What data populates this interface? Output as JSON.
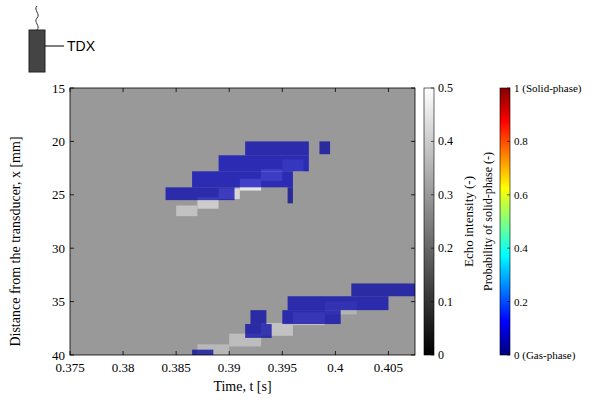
{
  "chart_data": {
    "type": "heatmap",
    "xlabel": "Time, t [s]",
    "ylabel": "Distance from the transducer, x [mm]",
    "annotations": [
      "TDX"
    ],
    "xlim": [
      0.375,
      0.4075
    ],
    "ylim": [
      15,
      40
    ],
    "xticks": [
      0.375,
      0.38,
      0.385,
      0.39,
      0.395,
      0.4,
      0.405
    ],
    "yticks": [
      15,
      20,
      25,
      30,
      35,
      40
    ],
    "echo": {
      "label": "Echo intensity (-)",
      "clim": [
        0,
        0.5
      ],
      "ticks": [
        0,
        0.1,
        0.2,
        0.3,
        0.4,
        0.5
      ],
      "cells": [
        {
          "t": [
            0.375,
            0.4075
          ],
          "x": [
            15,
            40
          ],
          "value": 0.3
        },
        {
          "t": [
            0.385,
            0.387
          ],
          "x": [
            26,
            27
          ],
          "value": 0.38
        },
        {
          "t": [
            0.387,
            0.389
          ],
          "x": [
            25.2,
            26.3
          ],
          "value": 0.4
        },
        {
          "t": [
            0.389,
            0.391
          ],
          "x": [
            24.4,
            25.4
          ],
          "value": 0.42
        },
        {
          "t": [
            0.391,
            0.393
          ],
          "x": [
            23.5,
            24.6
          ],
          "value": 0.45
        },
        {
          "t": [
            0.393,
            0.395
          ],
          "x": [
            22.6,
            23.7
          ],
          "value": 0.42
        },
        {
          "t": [
            0.395,
            0.397
          ],
          "x": [
            21.7,
            22.8
          ],
          "value": 0.38
        },
        {
          "t": [
            0.387,
            0.39
          ],
          "x": [
            39,
            40
          ],
          "value": 0.36
        },
        {
          "t": [
            0.39,
            0.393
          ],
          "x": [
            38,
            39.2
          ],
          "value": 0.37
        },
        {
          "t": [
            0.393,
            0.396
          ],
          "x": [
            37,
            38.2
          ],
          "value": 0.38
        },
        {
          "t": [
            0.396,
            0.399
          ],
          "x": [
            36,
            37.2
          ],
          "value": 0.38
        },
        {
          "t": [
            0.399,
            0.402
          ],
          "x": [
            35,
            36.2
          ],
          "value": 0.35
        }
      ]
    },
    "probability": {
      "label": "Probability of solid-phase (-)",
      "clim": [
        0,
        1
      ],
      "ticks": [
        {
          "value": 0,
          "label": "0 (Gas-phase)"
        },
        0.2,
        0.4,
        0.6,
        0.8,
        {
          "value": 1,
          "label": "1 (Solid-phase)"
        }
      ],
      "cells": [
        {
          "t": [
            0.3915,
            0.3975
          ],
          "x": [
            20,
            21.3
          ],
          "value": 0.05
        },
        {
          "t": [
            0.3985,
            0.3995
          ],
          "x": [
            20,
            21.2
          ],
          "value": 0.03
        },
        {
          "t": [
            0.389,
            0.3975
          ],
          "x": [
            21.3,
            22.8
          ],
          "value": 0.06
        },
        {
          "t": [
            0.3865,
            0.396
          ],
          "x": [
            22.8,
            24.3
          ],
          "value": 0.06
        },
        {
          "t": [
            0.384,
            0.3905
          ],
          "x": [
            24.3,
            25.5
          ],
          "value": 0.05
        },
        {
          "t": [
            0.3955,
            0.396
          ],
          "x": [
            24.3,
            25.8
          ],
          "value": 0.02
        },
        {
          "t": [
            0.4015,
            0.4075
          ],
          "x": [
            33.3,
            34.5
          ],
          "value": 0.04
        },
        {
          "t": [
            0.3955,
            0.405
          ],
          "x": [
            34.5,
            35.8
          ],
          "value": 0.05
        },
        {
          "t": [
            0.392,
            0.3935
          ],
          "x": [
            35.8,
            37.1
          ],
          "value": 0.04
        },
        {
          "t": [
            0.395,
            0.4005
          ],
          "x": [
            35.8,
            37.1
          ],
          "value": 0.05
        },
        {
          "t": [
            0.3915,
            0.394
          ],
          "x": [
            37.1,
            38.4
          ],
          "value": 0.04
        },
        {
          "t": [
            0.3865,
            0.3885
          ],
          "x": [
            39.5,
            40
          ],
          "value": 0.03
        }
      ]
    }
  }
}
